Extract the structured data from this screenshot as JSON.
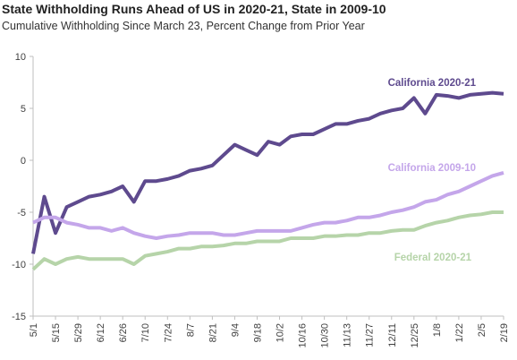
{
  "chart_data": {
    "type": "line",
    "title": "State Withholding Runs Ahead of US in 2020-21, State in 2009-10",
    "subtitle": "Cumulative Withholding Since March 23, Percent Change from Prior Year",
    "categories": [
      "5/1",
      null,
      "5/15",
      null,
      "5/29",
      null,
      "6/12",
      null,
      "6/26",
      null,
      "7/10",
      null,
      "7/24",
      null,
      "8/7",
      null,
      "8/21",
      null,
      "9/4",
      null,
      "9/18",
      null,
      "10/2",
      null,
      "10/16",
      null,
      "10/30",
      null,
      "11/13",
      null,
      "11/27",
      null,
      "12/11",
      null,
      "12/25",
      null,
      "1/8",
      null,
      "1/22",
      null,
      "2/5",
      null,
      "2/19"
    ],
    "series": [
      {
        "name": "California 2020-21",
        "color": "#5e4a8e",
        "values": [
          -9,
          -3.5,
          -7,
          -4.5,
          -4,
          -3.5,
          -3.3,
          -3,
          -2.5,
          -4,
          -2,
          -2,
          -1.8,
          -1.5,
          -1,
          -0.8,
          -0.5,
          0.5,
          1.5,
          1,
          0.5,
          1.8,
          1.5,
          2.3,
          2.5,
          2.5,
          3,
          3.5,
          3.5,
          3.8,
          4,
          4.5,
          4.8,
          5,
          6,
          4.5,
          6.3,
          6.2,
          6,
          6.3,
          6.4,
          6.5,
          6.4
        ]
      },
      {
        "name": "California 2009-10",
        "color": "#c4a6ea",
        "values": [
          -6,
          -5.5,
          -5.5,
          -6,
          -6.2,
          -6.5,
          -6.5,
          -6.8,
          -6.5,
          -7,
          -7.3,
          -7.5,
          -7.3,
          -7.2,
          -7,
          -7,
          -7,
          -7.2,
          -7.2,
          -7,
          -6.8,
          -6.8,
          -6.8,
          -6.8,
          -6.5,
          -6.2,
          -6,
          -6,
          -5.8,
          -5.5,
          -5.5,
          -5.3,
          -5,
          -4.8,
          -4.5,
          -4,
          -3.8,
          -3.3,
          -3,
          -2.5,
          -2,
          -1.5,
          -1.2
        ]
      },
      {
        "name": "Federal 2020-21",
        "color": "#b6d4a9",
        "values": [
          -10.5,
          -9.5,
          -10,
          -9.5,
          -9.3,
          -9.5,
          -9.5,
          -9.5,
          -9.5,
          -10,
          -9.2,
          -9,
          -8.8,
          -8.5,
          -8.5,
          -8.3,
          -8.3,
          -8.2,
          -8,
          -8,
          -7.8,
          -7.8,
          -7.8,
          -7.5,
          -7.5,
          -7.5,
          -7.3,
          -7.3,
          -7.2,
          -7.2,
          -7,
          -7,
          -6.8,
          -6.7,
          -6.7,
          -6.3,
          -6,
          -5.8,
          -5.5,
          -5.3,
          -5.2,
          -5,
          -5
        ]
      }
    ],
    "ylim": [
      -15,
      10
    ],
    "yticks": [
      10,
      5,
      0,
      -5,
      -10,
      -15
    ]
  }
}
